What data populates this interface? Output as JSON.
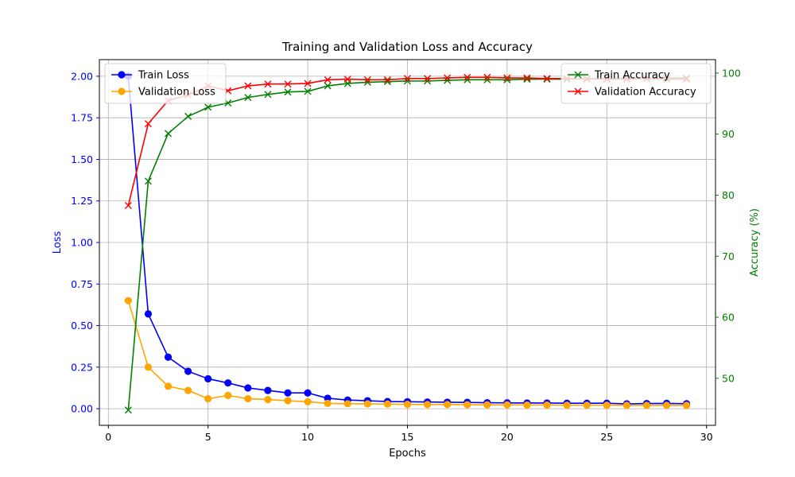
{
  "chart_data": {
    "type": "line",
    "title": "Training and Validation Loss and Accuracy",
    "xlabel": "Epochs",
    "ylabel_left": "Loss",
    "ylabel_right": "Accuracy (%)",
    "xlim": [
      -0.45,
      30.45
    ],
    "ylim_left": [
      -0.1,
      2.1
    ],
    "ylim_right": [
      42.3,
      102.2
    ],
    "x_ticks": [
      0,
      5,
      10,
      15,
      20,
      25,
      30
    ],
    "y_left_ticks": [
      "0.00",
      "0.25",
      "0.50",
      "0.75",
      "1.00",
      "1.25",
      "1.50",
      "1.75",
      "2.00"
    ],
    "y_right_ticks": [
      50,
      60,
      70,
      80,
      90,
      100
    ],
    "grid": true,
    "colors": {
      "left_axis": "#0000ff",
      "right_axis": "#008000"
    },
    "x": [
      1,
      2,
      3,
      4,
      5,
      6,
      7,
      8,
      9,
      10,
      11,
      12,
      13,
      14,
      15,
      16,
      17,
      18,
      19,
      20,
      21,
      22,
      23,
      24,
      25,
      26,
      27,
      28,
      29
    ],
    "series_left": [
      {
        "name": "Train Loss",
        "color": "#0000ff",
        "marker": "circle",
        "values": [
          2.0,
          0.57,
          0.31,
          0.225,
          0.18,
          0.155,
          0.125,
          0.11,
          0.095,
          0.095,
          0.063,
          0.052,
          0.048,
          0.043,
          0.042,
          0.04,
          0.039,
          0.038,
          0.036,
          0.035,
          0.034,
          0.034,
          0.033,
          0.033,
          0.033,
          0.029,
          0.031,
          0.032,
          0.03
        ]
      },
      {
        "name": "Validation Loss",
        "color": "#ffa500",
        "marker": "circle",
        "values": [
          0.65,
          0.25,
          0.135,
          0.11,
          0.06,
          0.08,
          0.06,
          0.055,
          0.048,
          0.042,
          0.032,
          0.03,
          0.029,
          0.028,
          0.026,
          0.025,
          0.025,
          0.024,
          0.023,
          0.023,
          0.022,
          0.022,
          0.021,
          0.021,
          0.021,
          0.02,
          0.02,
          0.02,
          0.02
        ]
      }
    ],
    "series_right": [
      {
        "name": "Train Accuracy",
        "color": "#008000",
        "marker": "x",
        "values": [
          44.8,
          82.3,
          90.1,
          92.9,
          94.4,
          95.1,
          96.0,
          96.5,
          96.9,
          97.0,
          97.9,
          98.3,
          98.5,
          98.6,
          98.7,
          98.7,
          98.8,
          98.9,
          98.9,
          98.9,
          99.0,
          99.0,
          99.0,
          99.1,
          99.1,
          99.1,
          99.2,
          99.2,
          99.2
        ]
      },
      {
        "name": "Validation Accuracy",
        "color": "#ff0000",
        "marker": "x",
        "values": [
          78.3,
          91.7,
          95.5,
          96.4,
          97.9,
          97.1,
          97.9,
          98.2,
          98.2,
          98.3,
          98.9,
          99.0,
          98.9,
          98.9,
          99.1,
          99.1,
          99.2,
          99.3,
          99.3,
          99.2,
          99.2,
          99.1,
          99.1,
          99.0,
          99.0,
          99.0,
          99.1,
          99.0,
          99.0
        ]
      }
    ],
    "legend_left_placement": "upper-left",
    "legend_right_placement": "upper-right"
  }
}
